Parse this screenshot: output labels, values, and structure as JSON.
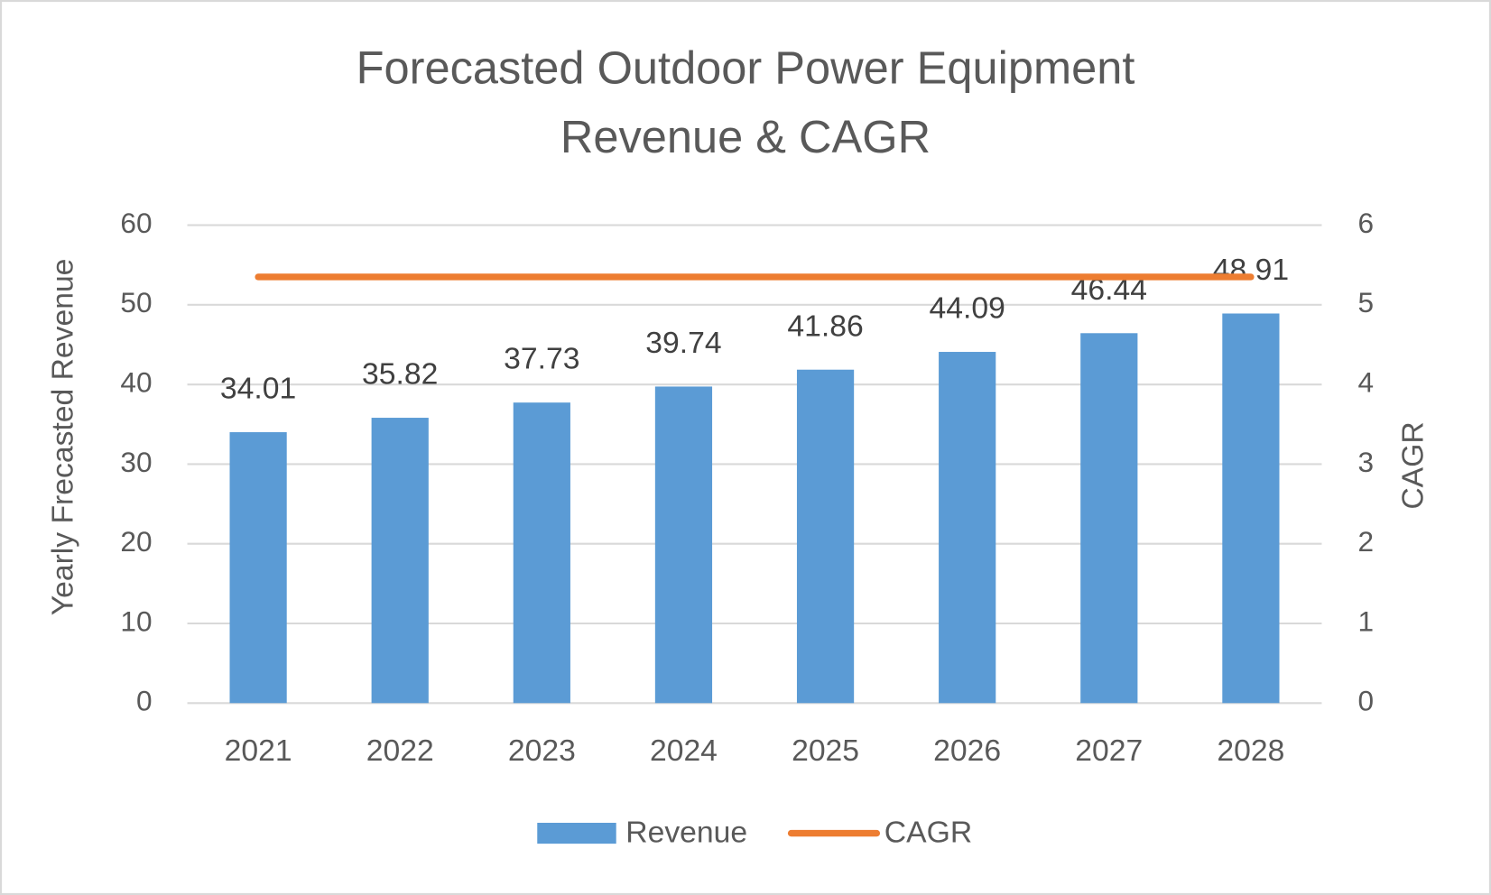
{
  "chart_data": {
    "type": "bar",
    "title": [
      "Forecasted Outdoor Power Equipment",
      "Revenue & CAGR"
    ],
    "y_label": "Yearly Frecasted Revenue",
    "y2_label": "CAGR",
    "categories": [
      "2021",
      "2022",
      "2023",
      "2024",
      "2025",
      "2026",
      "2027",
      "2028"
    ],
    "series": [
      {
        "name": "Revenue",
        "type": "bar",
        "color": "#5b9bd5",
        "values": [
          34.01,
          35.82,
          37.73,
          39.74,
          41.86,
          44.09,
          46.44,
          48.91
        ]
      },
      {
        "name": "CAGR",
        "type": "line",
        "axis": "y2",
        "color": "#ed7d31",
        "values": [
          5.35,
          5.35,
          5.35,
          5.35,
          5.35,
          5.35,
          5.35,
          5.35
        ]
      }
    ],
    "ylim": [
      0,
      60
    ],
    "yticks": [
      0,
      10,
      20,
      30,
      40,
      50,
      60
    ],
    "y2lim": [
      0,
      6
    ],
    "y2ticks": [
      0,
      1,
      2,
      3,
      4,
      5,
      6
    ],
    "grid": true,
    "legend": "bottom"
  }
}
